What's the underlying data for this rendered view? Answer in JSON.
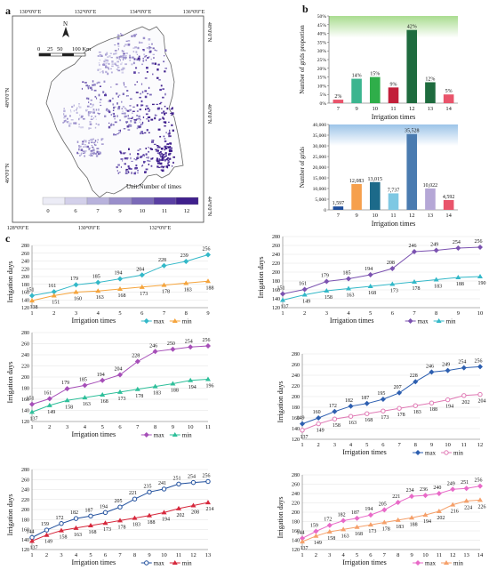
{
  "panel_labels": {
    "a": "a",
    "b": "b",
    "c": "c"
  },
  "map": {
    "top_ticks": [
      "130°0'0\"E",
      "132°0'0\"E",
      "134°0'0\"E",
      "136°0'0\"E"
    ],
    "bottom_ticks": [
      "128°0'0\"E",
      "130°0'0\"E",
      "132°0'0\"E"
    ],
    "left_ticks": [
      "48°0'0\"N",
      "46°0'0\"N"
    ],
    "right_ticks": [
      "48°0'0\"N",
      "46°0'0\"N",
      "44°0'0\"N"
    ],
    "north": "N",
    "scale_labels": [
      "0",
      "25",
      "50",
      "100 Km"
    ],
    "unit": "Unit:Number of times",
    "legend_labels": [
      "0",
      "6",
      "7",
      "9",
      "10",
      "11",
      "12"
    ],
    "legend_colors": [
      "#ececf6",
      "#d3d0ea",
      "#b8b2dc",
      "#9a8fcb",
      "#7b6ab8",
      "#5a3fa3",
      "#3f1f8c"
    ]
  },
  "chart_data": [
    {
      "type": "bar",
      "panel": "b-top",
      "title": "",
      "xlabel": "Irrigation times",
      "ylabel": "Number of grids proportion",
      "categories": [
        "7",
        "9",
        "10",
        "11",
        "12",
        "13",
        "14"
      ],
      "values": [
        2,
        14,
        15,
        9,
        42,
        12,
        5
      ],
      "value_labels": [
        "2%",
        "14%",
        "15%",
        "9%",
        "42%",
        "12%",
        "5%"
      ],
      "colors": [
        "#e9546b",
        "#3bb58f",
        "#2fae4a",
        "#c21f3a",
        "#1e6b3e",
        "#1e6b3e",
        "#e9546b"
      ],
      "ylim": [
        0,
        50
      ],
      "yticks": [
        "0%",
        "5%",
        "10%",
        "15%",
        "20%",
        "25%",
        "30%",
        "35%",
        "40%",
        "45%",
        "50%"
      ]
    },
    {
      "type": "bar",
      "panel": "b-bottom",
      "title": "",
      "xlabel": "Irrigation times",
      "ylabel": "Number of grids",
      "categories": [
        "7",
        "9",
        "10",
        "11",
        "12",
        "13",
        "14"
      ],
      "values": [
        1597,
        12083,
        13015,
        7737,
        35528,
        10022,
        4592
      ],
      "value_labels": [
        "1,597",
        "12,083",
        "13,015",
        "7,737",
        "35,528",
        "10,022",
        "4,592"
      ],
      "colors": [
        "#1f4e9c",
        "#f6a04d",
        "#1c6a8a",
        "#7ec8e3",
        "#4a7bb0",
        "#b5a7d6",
        "#e9546b"
      ],
      "ylim": [
        0,
        40000
      ],
      "yticks": [
        "0",
        "5,000",
        "10,000",
        "15,000",
        "20,000",
        "25,000",
        "30,000",
        "35,000",
        "40,000"
      ]
    },
    {
      "type": "line",
      "panel": "c1",
      "xlabel": "Irrigation times",
      "ylabel": "Irrigation days",
      "x": [
        1,
        2,
        3,
        4,
        5,
        6,
        7,
        8,
        9
      ],
      "ylim": [
        120,
        280
      ],
      "series": [
        {
          "name": "max",
          "values": [
            151,
            161,
            179,
            185,
            194,
            204,
            228,
            239,
            256
          ],
          "color": "#33b8c8",
          "marker": "diamond"
        },
        {
          "name": "min",
          "values": [
            138,
            151,
            160,
            163,
            168,
            173,
            178,
            183,
            188
          ],
          "color": "#f5a43c",
          "marker": "triangle"
        }
      ]
    },
    {
      "type": "line",
      "panel": "c2",
      "xlabel": "Irrigation times",
      "ylabel": "Irrigation days",
      "x": [
        1,
        2,
        3,
        4,
        5,
        6,
        7,
        8,
        9,
        10
      ],
      "ylim": [
        120,
        280
      ],
      "series": [
        {
          "name": "max",
          "values": [
            151,
            161,
            179,
            185,
            194,
            208,
            246,
            249,
            254,
            256
          ],
          "color": "#7b52b0",
          "marker": "diamond"
        },
        {
          "name": "min",
          "values": [
            137,
            149,
            158,
            163,
            168,
            173,
            178,
            183,
            188,
            190
          ],
          "color": "#33b8c8",
          "marker": "triangle"
        }
      ]
    },
    {
      "type": "line",
      "panel": "c3",
      "xlabel": "Irrigation times",
      "ylabel": "Irrigation days",
      "x": [
        1,
        2,
        3,
        4,
        5,
        6,
        7,
        8,
        9,
        10,
        11
      ],
      "ylim": [
        120,
        280
      ],
      "series": [
        {
          "name": "max",
          "values": [
            151,
            161,
            179,
            185,
            194,
            204,
            228,
            246,
            250,
            254,
            256
          ],
          "color": "#a64fb8",
          "marker": "diamond"
        },
        {
          "name": "min",
          "values": [
            137,
            149,
            158,
            163,
            168,
            173,
            178,
            183,
            188,
            194,
            196
          ],
          "color": "#2ebf9a",
          "marker": "triangle"
        }
      ]
    },
    {
      "type": "line",
      "panel": "c4",
      "xlabel": "Irrigation times",
      "ylabel": "Irrigation days",
      "x": [
        1,
        2,
        3,
        4,
        5,
        6,
        7,
        8,
        9,
        10,
        11,
        12
      ],
      "ylim": [
        120,
        280
      ],
      "series": [
        {
          "name": "max",
          "values": [
            149,
            160,
            172,
            182,
            187,
            195,
            207,
            228,
            246,
            249,
            254,
            256
          ],
          "color": "#2d5fb0",
          "marker": "diamond"
        },
        {
          "name": "min",
          "values": [
            137,
            149,
            158,
            163,
            168,
            173,
            178,
            183,
            188,
            194,
            202,
            204
          ],
          "color": "#e07ab5",
          "marker": "circle"
        }
      ]
    },
    {
      "type": "line",
      "panel": "c5",
      "xlabel": "Irrigation times",
      "ylabel": "Irrigation days",
      "x": [
        1,
        2,
        3,
        4,
        5,
        6,
        7,
        8,
        9,
        10,
        11,
        12,
        13
      ],
      "ylim": [
        120,
        280
      ],
      "series": [
        {
          "name": "max",
          "values": [
            144,
            159,
            172,
            182,
            187,
            194,
            205,
            221,
            235,
            241,
            251,
            254,
            256
          ],
          "color": "#1f4e9c",
          "marker": "circle"
        },
        {
          "name": "min",
          "values": [
            137,
            149,
            158,
            163,
            168,
            173,
            178,
            183,
            188,
            194,
            202,
            208,
            214
          ],
          "color": "#d6283c",
          "marker": "triangle"
        }
      ]
    },
    {
      "type": "line",
      "panel": "c6",
      "xlabel": "Irrigation times",
      "ylabel": "Irrigation days",
      "x": [
        1,
        2,
        3,
        4,
        5,
        6,
        7,
        8,
        9,
        10,
        11,
        12,
        13,
        14
      ],
      "ylim": [
        120,
        280
      ],
      "series": [
        {
          "name": "max",
          "values": [
            144,
            159,
            172,
            182,
            187,
            194,
            205,
            221,
            234,
            236,
            240,
            249,
            251,
            256
          ],
          "color": "#e86ac8",
          "marker": "diamond"
        },
        {
          "name": "min",
          "values": [
            137,
            149,
            158,
            163,
            168,
            173,
            178,
            183,
            188,
            194,
            202,
            216,
            224,
            226
          ],
          "color": "#f5a06a",
          "marker": "triangle"
        }
      ]
    }
  ]
}
